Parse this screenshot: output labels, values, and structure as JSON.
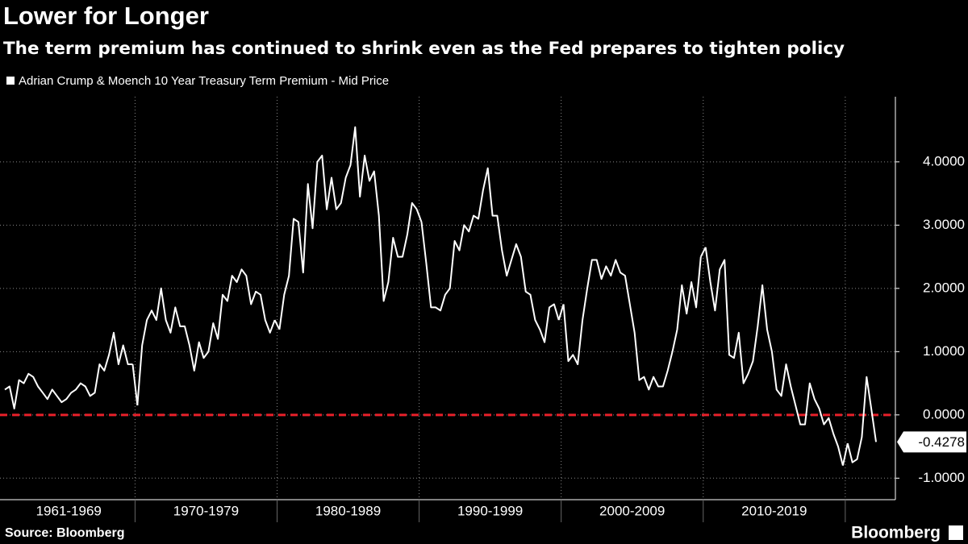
{
  "chart_data": {
    "type": "line",
    "title": "Lower for Longer",
    "subtitle": "The term premium has continued to shrink even as the Fed prepares to tighten policy",
    "series": [
      {
        "name": "Adrian Crump & Moench 10 Year Treasury Term Premium - Mid Price",
        "color": "#ffffff",
        "segments": [
          {
            "label": "1961-1969",
            "values": [
              0.4,
              0.45,
              0.1,
              0.55,
              0.5,
              0.65,
              0.6,
              0.45,
              0.35,
              0.25,
              0.4,
              0.3,
              0.2,
              0.25,
              0.35,
              0.4,
              0.5,
              0.45,
              0.3,
              0.35,
              0.8,
              0.7,
              0.95,
              1.3,
              0.8,
              1.1,
              0.8,
              0.8
            ]
          },
          {
            "label": "1970-1979",
            "values": [
              0.15,
              1.1,
              1.5,
              1.65,
              1.5,
              2.0,
              1.5,
              1.3,
              1.7,
              1.4,
              1.4,
              1.1,
              0.7,
              1.15,
              0.9,
              1.0,
              1.45,
              1.2,
              1.9,
              1.8,
              2.2,
              2.1,
              2.3,
              2.2,
              1.75,
              1.95,
              1.9,
              1.5,
              1.3,
              1.5
            ]
          },
          {
            "label": "1980-1989",
            "values": [
              1.35,
              1.9,
              2.2,
              3.1,
              3.05,
              2.25,
              3.65,
              2.95,
              4.0,
              4.1,
              3.25,
              3.75,
              3.25,
              3.35,
              3.75,
              3.95,
              4.55,
              3.45,
              4.1,
              3.7,
              3.85,
              3.15,
              1.8,
              2.1,
              2.8,
              2.5,
              2.5,
              2.85,
              3.35,
              3.25
            ]
          },
          {
            "label": "1990-1999",
            "values": [
              3.05,
              2.4,
              1.7,
              1.7,
              1.65,
              1.9,
              2.0,
              2.75,
              2.6,
              3.0,
              2.9,
              3.15,
              3.1,
              3.55,
              3.9,
              3.15,
              3.15,
              2.6,
              2.2,
              2.45,
              2.7,
              2.5,
              1.95,
              1.9,
              1.5,
              1.35,
              1.15,
              1.7,
              1.75,
              1.5
            ]
          },
          {
            "label": "2000-2009",
            "values": [
              1.75,
              0.85,
              0.95,
              0.8,
              1.5,
              2.0,
              2.45,
              2.45,
              2.15,
              2.35,
              2.2,
              2.45,
              2.25,
              2.2,
              1.75,
              1.3,
              0.55,
              0.6,
              0.4,
              0.6,
              0.45,
              0.45,
              0.7,
              1.0,
              1.35,
              2.05,
              1.6,
              2.1,
              1.7,
              2.5
            ]
          },
          {
            "label": "2010-2019",
            "values": [
              2.65,
              2.1,
              1.65,
              2.3,
              2.45,
              0.95,
              0.9,
              1.3,
              0.5,
              0.65,
              0.85,
              1.4,
              2.05,
              1.35,
              1.0,
              0.4,
              0.3,
              0.8,
              0.45,
              0.15,
              -0.15,
              -0.15,
              0.5,
              0.25,
              0.1,
              -0.15,
              -0.05,
              -0.3,
              -0.5,
              -0.8
            ]
          },
          {
            "label": null,
            "values": [
              -0.45,
              -0.75,
              -0.7,
              -0.35,
              0.6,
              0.1,
              -0.4278
            ]
          }
        ]
      }
    ],
    "reference_line": {
      "value": 0,
      "color": "#e8202a"
    },
    "ylim": [
      -1.34,
      5.03
    ],
    "yticks": [
      {
        "value": -1,
        "label": "-1.0000"
      },
      {
        "value": 0,
        "label": "0.0000"
      },
      {
        "value": 1,
        "label": "1.0000"
      },
      {
        "value": 2,
        "label": "2.0000"
      },
      {
        "value": 3,
        "label": "3.0000"
      },
      {
        "value": 4,
        "label": "4.0000"
      }
    ],
    "grid": true,
    "source": "Source: Bloomberg",
    "logo": "Bloomberg"
  }
}
